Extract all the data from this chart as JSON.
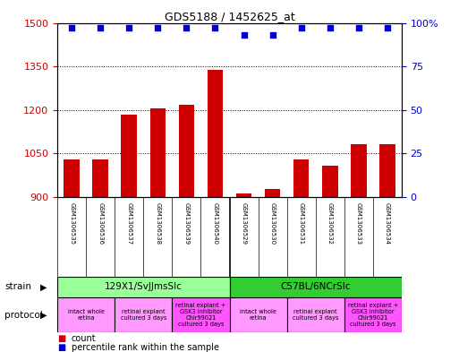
{
  "title": "GDS5188 / 1452625_at",
  "samples": [
    "GSM1306535",
    "GSM1306536",
    "GSM1306537",
    "GSM1306538",
    "GSM1306539",
    "GSM1306540",
    "GSM1306529",
    "GSM1306530",
    "GSM1306531",
    "GSM1306532",
    "GSM1306533",
    "GSM1306534"
  ],
  "counts": [
    1030,
    1030,
    1185,
    1205,
    1218,
    1338,
    913,
    928,
    1030,
    1008,
    1082,
    1082
  ],
  "percentiles": [
    97,
    97,
    97,
    97,
    97,
    97,
    93,
    93,
    97,
    97,
    97,
    97
  ],
  "ylim_left": [
    900,
    1500
  ],
  "ylim_right": [
    0,
    100
  ],
  "yticks_left": [
    900,
    1050,
    1200,
    1350,
    1500
  ],
  "yticks_right": [
    0,
    25,
    50,
    75,
    100
  ],
  "bar_color": "#cc0000",
  "dot_color": "#0000cc",
  "strain_groups": [
    {
      "label": "129X1/SvJJmsSlc",
      "start": 0,
      "end": 6,
      "color": "#99ff99"
    },
    {
      "label": "C57BL/6NCrSlc",
      "start": 6,
      "end": 12,
      "color": "#33cc33"
    }
  ],
  "protocol_groups": [
    {
      "label": "intact whole\nretina",
      "start": 0,
      "end": 2,
      "color": "#ff99ff"
    },
    {
      "label": "retinal explant\ncultured 3 days",
      "start": 2,
      "end": 4,
      "color": "#ff99ff"
    },
    {
      "label": "retinal explant +\nGSK3 inhibitor\nChir99021\ncultured 3 days",
      "start": 4,
      "end": 6,
      "color": "#ff55ff"
    },
    {
      "label": "intact whole\nretina",
      "start": 6,
      "end": 8,
      "color": "#ff99ff"
    },
    {
      "label": "retinal explant\ncultured 3 days",
      "start": 8,
      "end": 10,
      "color": "#ff99ff"
    },
    {
      "label": "retinal explant +\nGSK3 inhibitor\nChir99021\ncultured 3 days",
      "start": 10,
      "end": 12,
      "color": "#ff55ff"
    }
  ],
  "strain_label": "strain",
  "protocol_label": "protocol",
  "legend_count_label": "count",
  "legend_percentile_label": "percentile rank within the sample",
  "bar_color_left": "#cc0000",
  "dot_color_right": "#0000cc",
  "background_color": "#ffffff",
  "tick_label_color_left": "#cc0000",
  "tick_label_color_right": "#0000cc",
  "sample_box_color": "#dddddd",
  "grid_color": "#000000",
  "figsize": [
    5.13,
    3.93
  ],
  "dpi": 100
}
